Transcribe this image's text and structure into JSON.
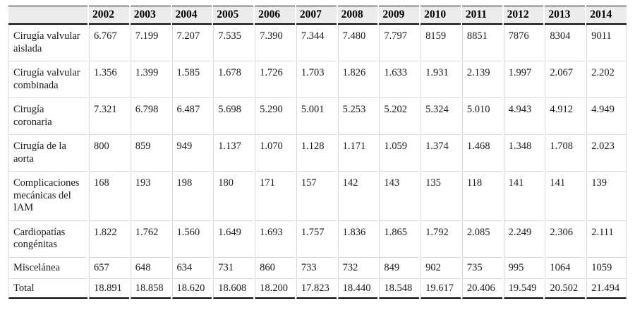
{
  "table": {
    "corner_label": "",
    "years": [
      "2002",
      "2003",
      "2004",
      "2005",
      "2006",
      "2007",
      "2008",
      "2009",
      "2010",
      "2011",
      "2012",
      "2013",
      "2014"
    ],
    "rows": [
      {
        "label": "Cirugía valvular aislada",
        "values": [
          "6.767",
          "7.199",
          "7.207",
          "7.535",
          "7.390",
          "7.344",
          "7.480",
          "7.797",
          "8159",
          "8851",
          "7876",
          "8304",
          "9011"
        ]
      },
      {
        "label": "Cirugía valvular combinada",
        "values": [
          "1.356",
          "1.399",
          "1.585",
          "1.678",
          "1.726",
          "1.703",
          "1.826",
          "1.633",
          "1.931",
          "2.139",
          "1.997",
          "2.067",
          "2.202"
        ]
      },
      {
        "label": "Cirugía coronaria",
        "values": [
          "7.321",
          "6.798",
          "6.487",
          "5.698",
          "5.290",
          "5.001",
          "5.253",
          "5.202",
          "5.324",
          "5.010",
          "4.943",
          "4.912",
          "4.949"
        ]
      },
      {
        "label": "Cirugía de la aorta",
        "values": [
          "800",
          "859",
          "949",
          "1.137",
          "1.070",
          "1.128",
          "1.171",
          "1.059",
          "1.374",
          "1.468",
          "1.348",
          "1.708",
          "2.023"
        ]
      },
      {
        "label": "Complicaciones mecánicas del IAM",
        "values": [
          "168",
          "193",
          "198",
          "180",
          "171",
          "157",
          "142",
          "143",
          "135",
          "118",
          "141",
          "141",
          "139"
        ]
      },
      {
        "label": "Cardiopatías congénitas",
        "values": [
          "1.822",
          "1.762",
          "1.560",
          "1.649",
          "1.693",
          "1.757",
          "1.836",
          "1.865",
          "1.792",
          "2.085",
          "2.249",
          "2.306",
          "2.111"
        ]
      },
      {
        "label": "Miscelánea",
        "values": [
          "657",
          "648",
          "634",
          "731",
          "860",
          "733",
          "732",
          "849",
          "902",
          "735",
          "995",
          "1064",
          "1059"
        ]
      },
      {
        "label": "Total",
        "values": [
          "18.891",
          "18.858",
          "18.620",
          "18.608",
          "18.200",
          "17.823",
          "18.440",
          "18.548",
          "19.617",
          "20.406",
          "19.549",
          "20.502",
          "21.494"
        ]
      }
    ],
    "colors": {
      "header_bg": "#ececec",
      "heavy_rule": "#000000",
      "grid_line": "#d9d9d9",
      "text": "#1a1a1a"
    }
  }
}
